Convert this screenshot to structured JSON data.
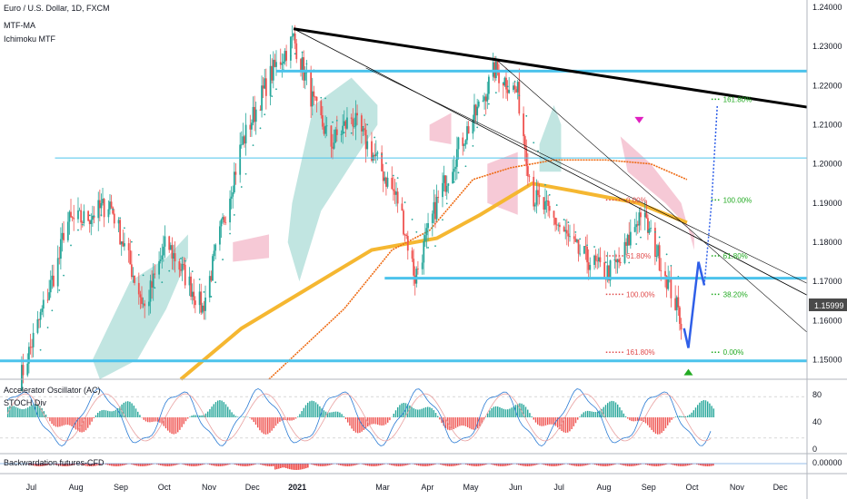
{
  "header": {
    "symbol": "Euro / U.S. Dollar, 1D, FXCM",
    "indicator_1": "MTF-MA",
    "indicator_2": "Ichimoku MTF"
  },
  "osc_panel": {
    "label_1": "Accelerator Oscillator (AC)",
    "label_2": "STOCH Div",
    "ticks": [
      "80",
      "40",
      "0"
    ]
  },
  "cfd_panel": {
    "label": "Backwardation,futures-CFD",
    "value": "0.00000"
  },
  "price_badge": "1.15999",
  "colors": {
    "bull": "#26a69a",
    "bear": "#ef5350",
    "ma_slow": "#f5b731",
    "ma_orange": "#ee6a12",
    "trend": "#000000",
    "level": "#4cc3ec",
    "arrow": "#2f5fe8",
    "cloud_green": "#b6e0dc",
    "cloud_red": "#f5c0cf",
    "fib_red": "#e04a4a",
    "fib_green": "#22aa22",
    "magenta": "#e020c0"
  },
  "chart_data": {
    "type": "candlestick",
    "title": "Euro / U.S. Dollar, 1D, FXCM",
    "ylim": [
      1.145,
      1.24
    ],
    "y_ticks": [
      "1.24000",
      "1.23000",
      "1.22000",
      "1.21000",
      "1.20000",
      "1.19000",
      "1.18000",
      "1.17000",
      "1.16000",
      "1.15000"
    ],
    "x_ticks": [
      "Jul",
      "Aug",
      "Sep",
      "Oct",
      "Nov",
      "Dec",
      "2021",
      "Mar",
      "Apr",
      "May",
      "Jun",
      "Jul",
      "Aug",
      "Sep",
      "Oct",
      "Nov",
      "Dec"
    ],
    "close_path": [
      [
        "2020-07",
        1.145
      ],
      [
        "2020-07-28",
        1.176
      ],
      [
        "2020-08",
        1.185
      ],
      [
        "2020-08-15",
        1.186
      ],
      [
        "2020-09",
        1.19
      ],
      [
        "2020-09-25",
        1.163
      ],
      [
        "2020-10-10",
        1.18
      ],
      [
        "2020-10-25",
        1.17
      ],
      [
        "2020-11-04",
        1.163
      ],
      [
        "2020-11-20",
        1.188
      ],
      [
        "2020-12",
        1.205
      ],
      [
        "2020-12-20",
        1.222
      ],
      [
        "2021-01-06",
        1.232
      ],
      [
        "2021-01-20",
        1.215
      ],
      [
        "2021-02",
        1.205
      ],
      [
        "2021-02-15",
        1.212
      ],
      [
        "2021-03",
        1.203
      ],
      [
        "2021-03-20",
        1.19
      ],
      [
        "2021-03-31",
        1.171
      ],
      [
        "2021-04-15",
        1.19
      ],
      [
        "2021-05",
        1.205
      ],
      [
        "2021-05-15",
        1.215
      ],
      [
        "2021-05-25",
        1.224
      ],
      [
        "2021-06-10",
        1.218
      ],
      [
        "2021-06-20",
        1.192
      ],
      [
        "2021-07-07",
        1.185
      ],
      [
        "2021-07-20",
        1.178
      ],
      [
        "2021-08-10",
        1.172
      ],
      [
        "2021-08-20",
        1.175
      ],
      [
        "2021-09-03",
        1.188
      ],
      [
        "2021-09-20",
        1.172
      ],
      [
        "2021-10-01",
        1.16
      ]
    ],
    "annotations": {
      "horizontal_levels": [
        1.2237,
        1.2015,
        1.1708,
        1.1497
      ],
      "fib_left": [
        {
          "label": "0.00%",
          "value": 1.1908
        },
        {
          "label": "61.80%",
          "value": 1.1765
        },
        {
          "label": "100.00%",
          "value": 1.1667
        },
        {
          "label": "161.80%",
          "value": 1.1519
        }
      ],
      "fib_right": [
        {
          "label": "161.80%",
          "value": 1.2165
        },
        {
          "label": "100.00%",
          "value": 1.1908
        },
        {
          "label": "61.80%",
          "value": 1.1765
        },
        {
          "label": "38.20%",
          "value": 1.1667
        },
        {
          "label": "0.00%",
          "value": 1.1519
        }
      ]
    }
  }
}
